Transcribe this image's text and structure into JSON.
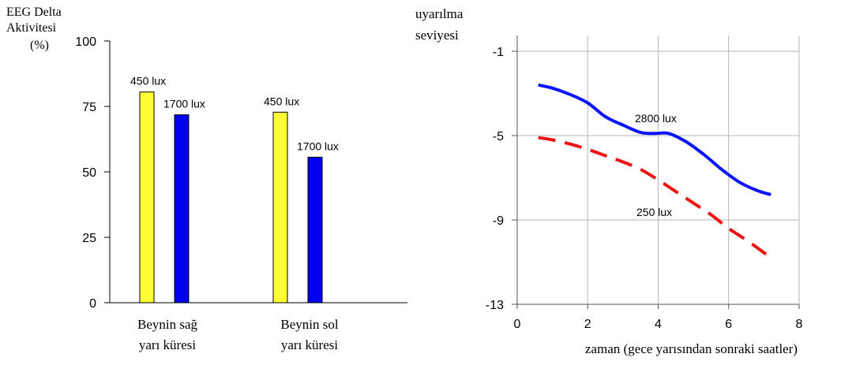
{
  "chart_data": [
    {
      "type": "bar",
      "ylabel_lines": [
        "EEG Delta",
        "Aktivitesi",
        "(%)"
      ],
      "categories": [
        [
          "Beynin sağ",
          "yarı küresi"
        ],
        [
          "Beynin sol",
          "yarı küresi"
        ]
      ],
      "series": [
        {
          "name": "450 lux",
          "values": [
            80.5,
            72.8
          ],
          "color": "#ffff33"
        },
        {
          "name": "1700 lux",
          "values": [
            71.8,
            55.6
          ],
          "color": "#0000ee"
        }
      ],
      "bar_labels": [
        [
          "450 lux",
          "1700 lux"
        ],
        [
          "450 lux",
          "1700 lux"
        ]
      ],
      "ylim": [
        0,
        100
      ],
      "yticks": [
        "0",
        "25",
        "50",
        "75",
        "100"
      ],
      "grid": false,
      "legend": "none"
    },
    {
      "type": "line",
      "ylabel_lines": [
        "uyarılma",
        "seviyesi"
      ],
      "xlabel": "zaman (gece yarısından sonraki saatler)",
      "xlim": [
        0,
        8
      ],
      "ylim": [
        -13,
        -0.3
      ],
      "xticks": [
        "0",
        "2",
        "4",
        "6",
        "8"
      ],
      "yticks": [
        "-1",
        "-5",
        "-9",
        "-13"
      ],
      "grid": true,
      "legend": "none",
      "series": [
        {
          "name": "2800 lux",
          "color": "#0a14ff",
          "style": "solid",
          "x": [
            0.6,
            1.0,
            1.5,
            2.0,
            2.5,
            3.0,
            3.5,
            3.9,
            4.3,
            4.8,
            5.3,
            5.8,
            6.3,
            6.8,
            7.2
          ],
          "y": [
            -2.6,
            -2.75,
            -3.05,
            -3.45,
            -4.1,
            -4.5,
            -4.85,
            -4.9,
            -4.9,
            -5.3,
            -5.9,
            -6.6,
            -7.2,
            -7.6,
            -7.8
          ]
        },
        {
          "name": "250 lux",
          "color": "#ee1111",
          "style": "dashed",
          "x": [
            0.6,
            1.0,
            1.5,
            2.0,
            2.5,
            3.0,
            3.5,
            4.0,
            4.5,
            5.0,
            5.5,
            6.0,
            6.5,
            7.0,
            7.2
          ],
          "y": [
            -5.1,
            -5.2,
            -5.4,
            -5.65,
            -5.95,
            -6.25,
            -6.6,
            -7.1,
            -7.65,
            -8.2,
            -8.75,
            -9.4,
            -9.95,
            -10.55,
            -10.8
          ]
        }
      ],
      "annotations": [
        "2800 lux",
        "250 lux"
      ]
    }
  ]
}
